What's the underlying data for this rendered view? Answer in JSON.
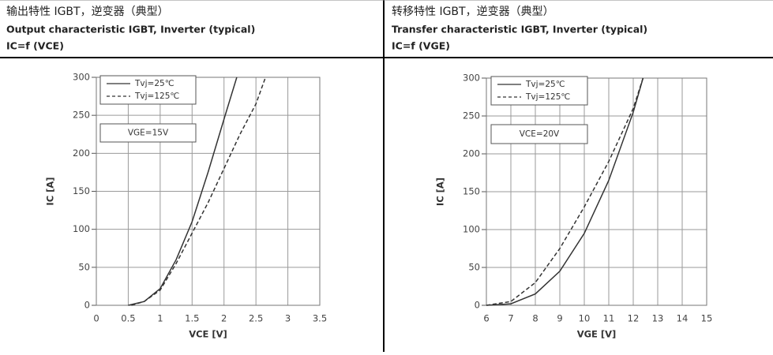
{
  "chart_data": [
    {
      "type": "line",
      "title": "输出特性 IGBT，逆变器（典型）",
      "subtitle": "Output characteristic IGBT, Inverter (typical)",
      "formula": "IC=f (VCE)",
      "xlabel": "VCE [V]",
      "ylabel": "IC [A]",
      "annotation": "VGE=15V",
      "xlim": [
        0,
        3.5
      ],
      "xticks": [
        0,
        0.5,
        1,
        1.5,
        2,
        2.5,
        3,
        3.5
      ],
      "ylim": [
        0,
        300
      ],
      "yticks": [
        0,
        50,
        100,
        150,
        200,
        250,
        300
      ],
      "grid": true,
      "series": [
        {
          "name": "Tvj=25℃",
          "color": "#333333",
          "style": "solid",
          "x": [
            0.5,
            0.75,
            1,
            1.25,
            1.5,
            1.75,
            2,
            2.2
          ],
          "values": [
            0,
            5,
            22,
            60,
            110,
            175,
            245,
            300
          ]
        },
        {
          "name": "Tvj=125℃",
          "color": "#333333",
          "style": "dashed",
          "x": [
            0.55,
            0.75,
            1,
            1.25,
            1.5,
            1.75,
            2,
            2.25,
            2.5,
            2.65
          ],
          "values": [
            0,
            5,
            20,
            55,
            95,
            135,
            180,
            225,
            265,
            300
          ]
        }
      ]
    },
    {
      "type": "line",
      "title": "转移特性 IGBT，逆变器（典型）",
      "subtitle": "Transfer characteristic IGBT, Inverter (typical)",
      "formula": "IC=f (VGE)",
      "xlabel": "VGE [V]",
      "ylabel": "IC [A]",
      "annotation": "VCE=20V",
      "xlim": [
        6,
        15
      ],
      "xticks": [
        6,
        7,
        8,
        9,
        10,
        11,
        12,
        13,
        14,
        15
      ],
      "ylim": [
        0,
        300
      ],
      "yticks": [
        0,
        50,
        100,
        150,
        200,
        250,
        300
      ],
      "grid": true,
      "series": [
        {
          "name": "Tvj=25℃",
          "color": "#333333",
          "style": "solid",
          "x": [
            6,
            7,
            8,
            9,
            10,
            11,
            12,
            12.4
          ],
          "values": [
            0,
            2,
            15,
            45,
            95,
            165,
            255,
            300
          ]
        },
        {
          "name": "Tvj=125℃",
          "color": "#333333",
          "style": "dashed",
          "x": [
            6,
            7,
            8,
            9,
            10,
            11,
            12,
            12.4
          ],
          "values": [
            0,
            5,
            30,
            75,
            130,
            190,
            260,
            300
          ]
        }
      ]
    }
  ]
}
